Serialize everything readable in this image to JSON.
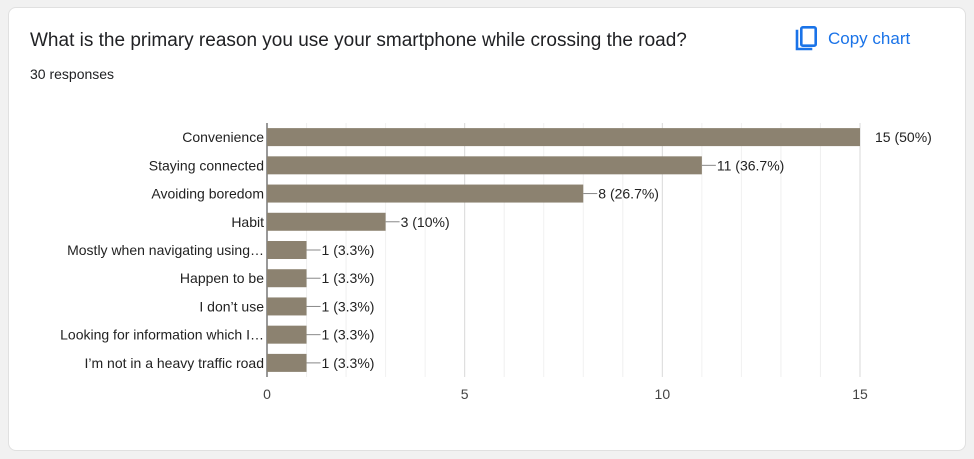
{
  "question": "What is the primary reason you use your smartphone while crossing the road?",
  "responses_text": "30 responses",
  "copy_button": {
    "label": "Copy chart",
    "icon": "copy-icon"
  },
  "colors": {
    "bar": "#8c8270",
    "accent": "#1a73e8",
    "grid": "#e6e6e6",
    "axis": "#333333"
  },
  "chart_data": {
    "type": "bar",
    "orientation": "horizontal",
    "title": "What is the primary reason you use your smartphone while crossing the road?",
    "categories": [
      "Convenience",
      "Staying connected",
      "Avoiding boredom",
      "Habit",
      "Mostly when navigating using…",
      "Happen to be",
      "I don’t use",
      "Looking for information which I…",
      "I’m not in a heavy traffic road"
    ],
    "values": [
      15,
      11,
      8,
      3,
      1,
      1,
      1,
      1,
      1
    ],
    "value_labels": [
      "15 (50%)",
      "11 (36.7%)",
      "8 (26.7%)",
      "3 (10%)",
      "1 (3.3%)",
      "1 (3.3%)",
      "1 (3.3%)",
      "1 (3.3%)",
      "1 (3.3%)"
    ],
    "xlim": [
      0,
      15
    ],
    "xticks": [
      0,
      5,
      10,
      15
    ],
    "grid": true,
    "legend": "none"
  }
}
